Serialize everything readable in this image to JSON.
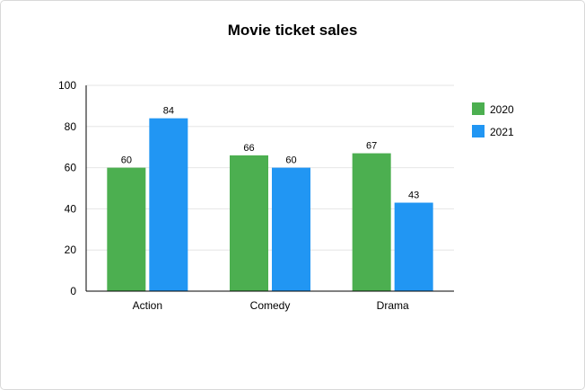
{
  "chart_data": {
    "type": "bar",
    "title": "Movie ticket sales",
    "xlabel": "",
    "ylabel": "",
    "categories": [
      "Action",
      "Comedy",
      "Drama"
    ],
    "series": [
      {
        "name": "2020",
        "values": [
          60,
          66,
          67
        ],
        "color": "#4caf50"
      },
      {
        "name": "2021",
        "values": [
          84,
          60,
          43
        ],
        "color": "#2196f3"
      }
    ],
    "ylim": [
      0,
      100
    ],
    "yticks": [
      0,
      20,
      40,
      60,
      80,
      100
    ],
    "grid": true,
    "data_labels": true,
    "legend_position": "right"
  }
}
